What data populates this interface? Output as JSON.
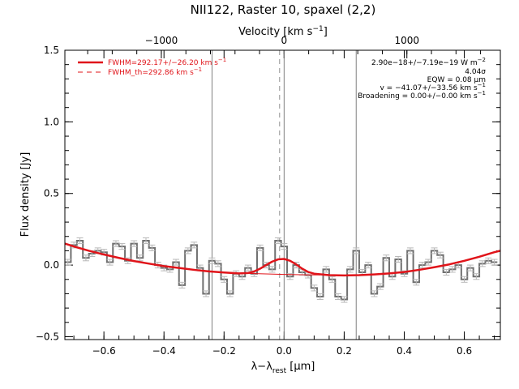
{
  "chart_data": {
    "type": "line",
    "title": "NII122, Raster 10, spaxel (2,2)",
    "xlabel": "λ−λ",
    "xlabel_sub": "rest",
    "xlabel_unit": " [μm]",
    "ylabel": "Flux density [Jy]",
    "top_axis": {
      "label": "Velocity [km s",
      "label_sup": "−1",
      "label_end": "]",
      "tick_labels": [
        "−1000",
        "0",
        "1000"
      ],
      "tick_values_um": [
        -0.4088,
        0.0,
        0.4088
      ]
    },
    "xlim": [
      -0.73,
      0.72
    ],
    "ylim": [
      -0.52,
      1.5
    ],
    "x_tick_labels": [
      "−0.6",
      "−0.4",
      "−0.2",
      "0.0",
      "0.2",
      "0.4",
      "0.6"
    ],
    "x_tick_values": [
      -0.6,
      -0.4,
      -0.2,
      0.0,
      0.2,
      0.4,
      0.6
    ],
    "y_tick_labels": [
      "−0.5",
      "0.0",
      "0.5",
      "1.0",
      "1.5"
    ],
    "y_tick_values": [
      -0.5,
      0.0,
      0.5,
      1.0,
      1.5
    ],
    "vertical_lines": [
      -0.24,
      0.0,
      0.24
    ],
    "dashed_line": -0.015,
    "series": [
      {
        "name": "",
        "style": "histogram",
        "color": "#707070",
        "error": 0.02,
        "x": [
          -0.72,
          -0.7,
          -0.68,
          -0.66,
          -0.64,
          -0.62,
          -0.6,
          -0.58,
          -0.56,
          -0.54,
          -0.52,
          -0.5,
          -0.48,
          -0.46,
          -0.44,
          -0.42,
          -0.4,
          -0.38,
          -0.36,
          -0.34,
          -0.32,
          -0.3,
          -0.28,
          -0.26,
          -0.24,
          -0.22,
          -0.2,
          -0.18,
          -0.16,
          -0.14,
          -0.12,
          -0.1,
          -0.08,
          -0.06,
          -0.04,
          -0.02,
          0.0,
          0.02,
          0.04,
          0.06,
          0.08,
          0.1,
          0.12,
          0.14,
          0.16,
          0.18,
          0.2,
          0.22,
          0.24,
          0.26,
          0.28,
          0.3,
          0.32,
          0.34,
          0.36,
          0.38,
          0.4,
          0.42,
          0.44,
          0.46,
          0.48,
          0.5,
          0.52,
          0.54,
          0.56,
          0.58,
          0.6,
          0.62,
          0.64,
          0.66,
          0.68,
          0.7
        ],
        "y": [
          0.02,
          0.14,
          0.17,
          0.05,
          0.08,
          0.1,
          0.09,
          0.02,
          0.15,
          0.13,
          0.03,
          0.15,
          0.05,
          0.17,
          0.12,
          0.0,
          -0.02,
          -0.03,
          0.02,
          -0.14,
          0.1,
          0.14,
          -0.02,
          -0.2,
          0.03,
          0.01,
          -0.1,
          -0.2,
          -0.06,
          -0.08,
          -0.02,
          -0.06,
          0.12,
          0.0,
          -0.03,
          0.17,
          0.13,
          -0.08,
          0.0,
          -0.05,
          -0.07,
          -0.16,
          -0.22,
          -0.03,
          -0.1,
          -0.22,
          -0.24,
          -0.03,
          0.1,
          -0.05,
          0.0,
          -0.2,
          -0.15,
          0.05,
          -0.08,
          0.04,
          -0.06,
          0.1,
          -0.12,
          0.0,
          0.02,
          0.1,
          0.07,
          -0.05,
          -0.03,
          0.0,
          -0.1,
          -0.02,
          -0.08,
          0.01,
          0.03,
          0.02
        ]
      },
      {
        "name": "FWHM=292.17+/−26.20 km s",
        "name_sup": "−1",
        "style": "solid",
        "color": "#e0141a",
        "x": [
          -0.73,
          -0.7,
          -0.65,
          -0.6,
          -0.55,
          -0.5,
          -0.45,
          -0.4,
          -0.35,
          -0.3,
          -0.25,
          -0.2,
          -0.15,
          -0.12,
          -0.1,
          -0.08,
          -0.06,
          -0.04,
          -0.02,
          0.0,
          0.02,
          0.04,
          0.06,
          0.08,
          0.1,
          0.15,
          0.2,
          0.25,
          0.3,
          0.35,
          0.4,
          0.45,
          0.5,
          0.55,
          0.6,
          0.65,
          0.7,
          0.72
        ],
        "y": [
          0.15,
          0.13,
          0.1,
          0.074,
          0.05,
          0.028,
          0.01,
          -0.007,
          -0.02,
          -0.033,
          -0.044,
          -0.052,
          -0.058,
          -0.055,
          -0.045,
          -0.025,
          0.0,
          0.024,
          0.04,
          0.043,
          0.03,
          0.005,
          -0.025,
          -0.048,
          -0.06,
          -0.07,
          -0.072,
          -0.07,
          -0.065,
          -0.058,
          -0.048,
          -0.033,
          -0.015,
          0.005,
          0.03,
          0.058,
          0.09,
          0.1
        ]
      },
      {
        "name": "FWHM_th=292.86 km s",
        "name_sup": "−1",
        "style": "dashed",
        "color": "#e0141a",
        "x": [
          -0.2,
          -0.12,
          -0.06,
          0.0,
          0.06,
          0.12
        ],
        "y": [
          -0.052,
          -0.058,
          -0.062,
          -0.065,
          -0.067,
          -0.069
        ]
      }
    ],
    "annotations": [
      {
        "text": "2.90e−18+/−7.19e−19 W m",
        "sup": "−2"
      },
      {
        "text": "4.04σ",
        "sup": ""
      },
      {
        "text": "EQW = 0.08 μm",
        "sup": ""
      },
      {
        "text": "v = −41.07+/−33.56 km s",
        "sup": "−1"
      },
      {
        "text": "Broadening = 0.00+/−0.00 km s",
        "sup": "−1"
      }
    ],
    "legend_position": "top-left",
    "annotation_position": "top-right",
    "grid": false
  }
}
